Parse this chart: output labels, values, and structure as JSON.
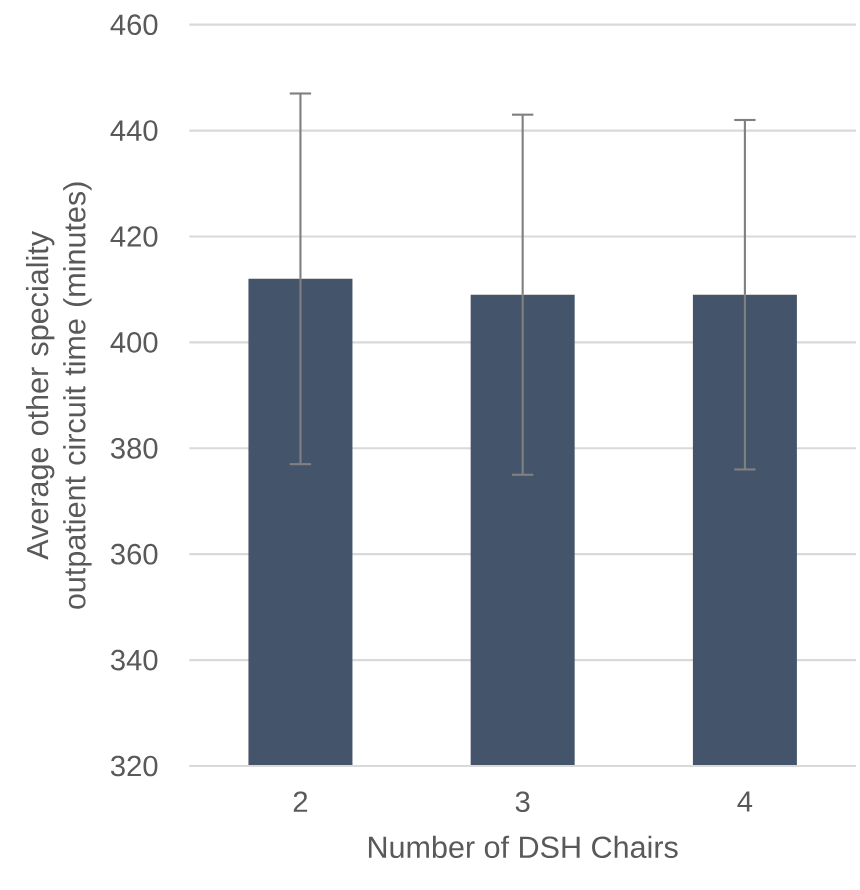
{
  "chart_data": {
    "type": "bar",
    "xlabel": "Number of DSH Chairs",
    "ylabel": "Average other speciality outpatient circuit time (minutes)",
    "categories": [
      "2",
      "3",
      "4"
    ],
    "values": [
      412,
      409,
      409
    ],
    "errors": [
      35,
      34,
      33
    ],
    "color": "#44546a",
    "ylim": [
      320,
      460
    ],
    "yticks": [
      320,
      340,
      360,
      380,
      400,
      420,
      440,
      460
    ],
    "grid": "y"
  }
}
